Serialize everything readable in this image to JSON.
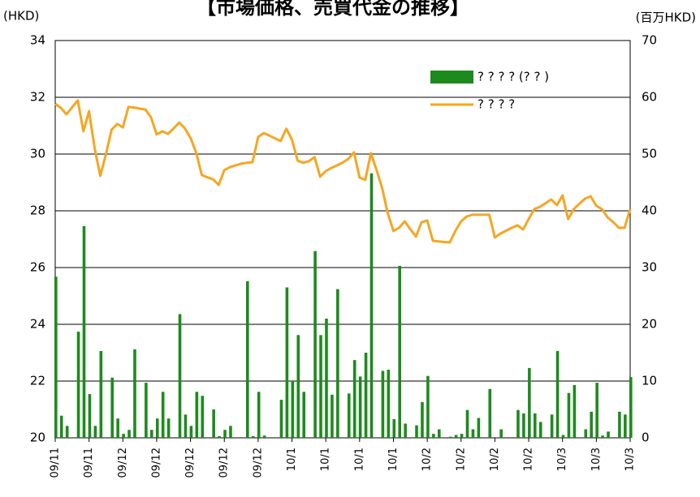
{
  "chart_data": {
    "type": "bar-line",
    "title": "【市場価格、売買代金の推移】",
    "ylabel": "(HKD)",
    "y2label": "(百万HKD)",
    "categories": [
      "09/11",
      null,
      null,
      null,
      null,
      null,
      "09/11",
      null,
      null,
      null,
      null,
      null,
      "09/12",
      null,
      null,
      null,
      null,
      null,
      "09/12",
      null,
      null,
      null,
      null,
      null,
      "09/12",
      null,
      null,
      null,
      null,
      null,
      "09/12",
      null,
      null,
      null,
      null,
      null,
      "09/12",
      null,
      null,
      null,
      null,
      null,
      "10/1",
      null,
      null,
      null,
      null,
      null,
      "10/1",
      null,
      null,
      null,
      null,
      null,
      "10/1",
      null,
      null,
      null,
      null,
      null,
      "10/1",
      null,
      null,
      null,
      null,
      null,
      "10/2",
      null,
      null,
      null,
      null,
      null,
      "10/2",
      null,
      null,
      null,
      null,
      null,
      "10/2",
      null,
      null,
      null,
      null,
      null,
      "10/2",
      null,
      null,
      null,
      null,
      null,
      "10/3",
      null,
      null,
      null,
      null,
      null,
      "10/3",
      null,
      null,
      null,
      null,
      null,
      "10/3"
    ],
    "series": [
      {
        "name": "? ? ? ? (? ? )",
        "kind": "bar",
        "axis": "y2",
        "color": "#1e8a1e",
        "values": [
          28.4,
          3.9,
          2.1,
          0,
          18.7,
          37.3,
          7.7,
          2.1,
          15.3,
          0,
          10.6,
          3.4,
          0.7,
          1.4,
          15.6,
          0,
          9.7,
          1.4,
          3.4,
          8.1,
          3.4,
          0,
          21.8,
          4.1,
          2.1,
          8.1,
          7.4,
          0,
          5.0,
          0.3,
          1.4,
          2.1,
          0,
          0,
          27.6,
          0.3,
          8.1,
          0.4,
          0,
          0,
          6.7,
          26.5,
          10.0,
          18.1,
          8.1,
          0,
          32.9,
          18.1,
          21.0,
          7.6,
          26.2,
          0,
          7.8,
          13.7,
          10.8,
          15.0,
          46.6,
          0,
          11.8,
          12.0,
          3.3,
          30.3,
          2.5,
          0,
          2.2,
          6.3,
          10.9,
          0.7,
          1.5,
          0,
          0.2,
          0.5,
          0.7,
          4.9,
          1.5,
          3.5,
          0,
          8.6,
          0,
          1.5,
          0,
          0,
          4.9,
          4.3,
          12.3,
          4.3,
          2.8,
          0,
          4.1,
          15.3,
          0.5,
          7.9,
          9.3,
          0,
          1.5,
          4.6,
          9.7,
          0.4,
          1.1,
          0,
          4.6,
          4.1,
          10.7
        ]
      },
      {
        "name": "? ? ? ?",
        "kind": "line",
        "axis": "y",
        "color": "#f5a623",
        "values": [
          31.77,
          31.63,
          31.4,
          31.65,
          31.89,
          30.8,
          31.51,
          30.2,
          29.23,
          30.0,
          30.86,
          31.06,
          30.94,
          31.66,
          31.64,
          31.6,
          31.57,
          31.29,
          30.69,
          30.8,
          30.71,
          30.9,
          31.11,
          30.91,
          30.57,
          30.06,
          29.26,
          29.18,
          29.11,
          28.91,
          29.43,
          29.54,
          29.6,
          29.66,
          29.69,
          29.71,
          30.6,
          30.74,
          30.65,
          30.55,
          30.46,
          30.89,
          30.51,
          29.77,
          29.69,
          29.75,
          29.89,
          29.2,
          29.4,
          29.51,
          29.6,
          29.7,
          29.83,
          30.06,
          29.17,
          29.09,
          30.03,
          29.45,
          28.8,
          27.91,
          27.29,
          27.4,
          27.63,
          27.35,
          27.09,
          27.6,
          27.66,
          26.94,
          26.92,
          26.9,
          26.89,
          27.29,
          27.63,
          27.8,
          27.86,
          27.86,
          27.86,
          27.86,
          27.06,
          27.2,
          27.3,
          27.4,
          27.49,
          27.34,
          27.71,
          28.06,
          28.14,
          28.27,
          28.4,
          28.2,
          28.54,
          27.71,
          28.06,
          28.25,
          28.43,
          28.51,
          28.17,
          28.06,
          27.77,
          27.6,
          27.4,
          27.4,
          28.06
        ]
      }
    ],
    "ylim": [
      20,
      34
    ],
    "yticks": [
      20,
      22,
      24,
      26,
      28,
      30,
      32,
      34
    ],
    "y2lim": [
      0,
      70
    ],
    "y2ticks": [
      0,
      10,
      20,
      30,
      40,
      50,
      60,
      70
    ],
    "grid": true,
    "legend": "upper right"
  }
}
